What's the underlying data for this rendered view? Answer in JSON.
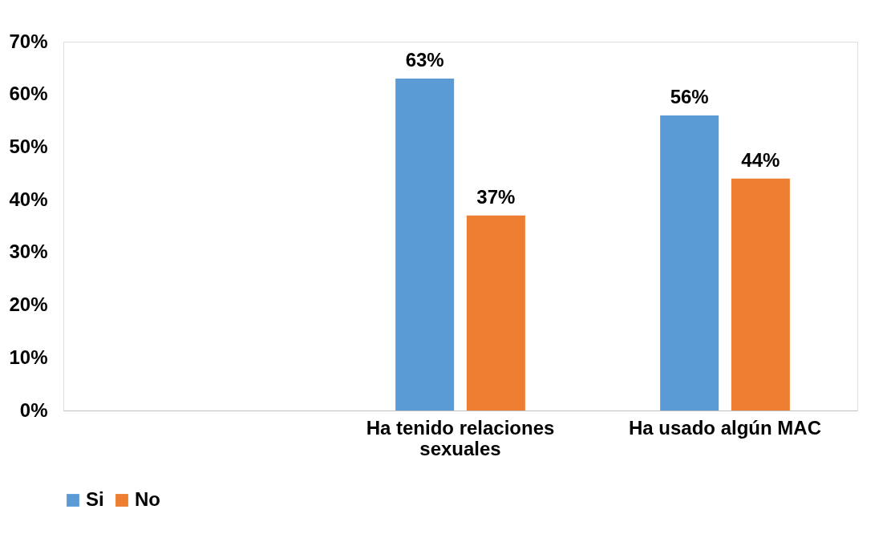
{
  "chart_data": {
    "type": "bar",
    "categories": [
      null,
      "Ha tenido relaciones sexuales",
      "Ha usado algún MAC"
    ],
    "series": [
      {
        "name": "Si",
        "color": "#5b9bd5",
        "values": [
          null,
          63,
          56
        ],
        "value_labels": [
          null,
          "63%",
          "56%"
        ]
      },
      {
        "name": "No",
        "color": "#ed7d31",
        "values": [
          null,
          37,
          44
        ],
        "value_labels": [
          null,
          "37%",
          "44%"
        ]
      }
    ],
    "ylim": [
      0,
      70
    ],
    "yticks": [
      {
        "value": 0,
        "label": "0%"
      },
      {
        "value": 10,
        "label": "10%"
      },
      {
        "value": 20,
        "label": "20%"
      },
      {
        "value": 30,
        "label": "30%"
      },
      {
        "value": 40,
        "label": "40%"
      },
      {
        "value": 50,
        "label": "50%"
      },
      {
        "value": 60,
        "label": "60%"
      },
      {
        "value": 70,
        "label": "70%"
      }
    ],
    "grid": false,
    "legend": "bottom"
  }
}
